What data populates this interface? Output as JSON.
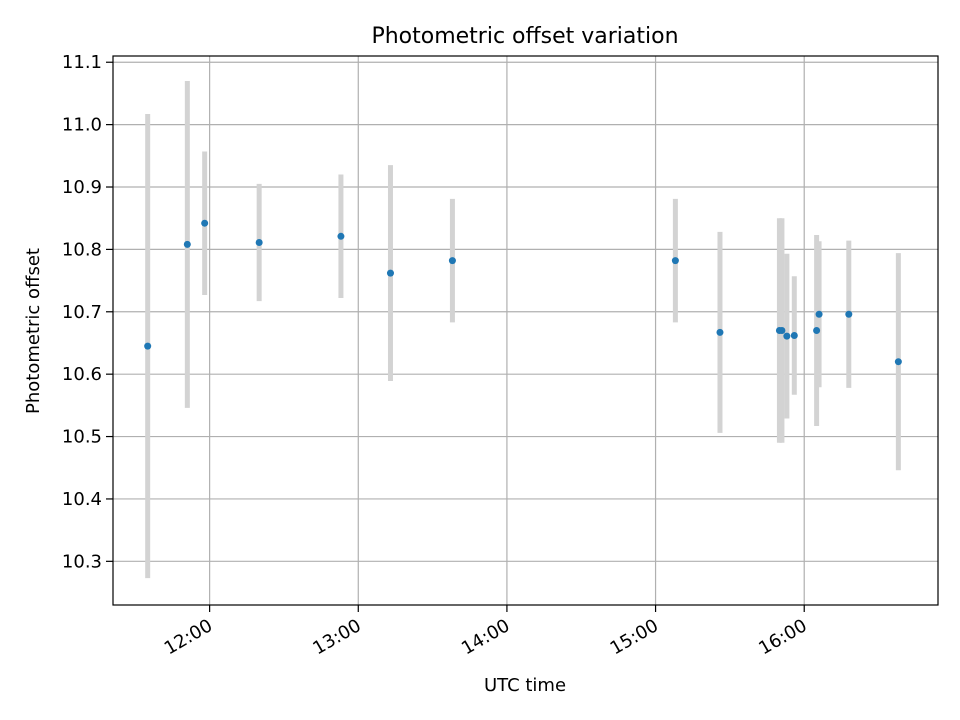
{
  "chart_data": {
    "type": "scatter",
    "title": "Photometric offset variation",
    "xlabel": "UTC time",
    "ylabel": "Photometric offset",
    "x_unit": "UTC hours",
    "xlim": [
      "11:21",
      "16:54"
    ],
    "ylim": [
      10.23,
      11.11
    ],
    "grid": true,
    "x_ticks": [
      "12:00",
      "13:00",
      "14:00",
      "15:00",
      "16:00"
    ],
    "y_ticks": [
      "10.3",
      "10.4",
      "10.5",
      "10.6",
      "10.7",
      "10.8",
      "10.9",
      "11.0",
      "11.1"
    ],
    "colors": {
      "point": "#1f77b4",
      "errorbar": "#d3d3d3",
      "grid": "#b0b0b0"
    },
    "series": [
      {
        "points": [
          {
            "x": "11:35",
            "y": 10.645,
            "err": 0.372
          },
          {
            "x": "11:51",
            "y": 10.808,
            "err": 0.262
          },
          {
            "x": "11:58",
            "y": 10.842,
            "err": 0.115
          },
          {
            "x": "12:20",
            "y": 10.811,
            "err": 0.094
          },
          {
            "x": "12:53",
            "y": 10.821,
            "err": 0.099
          },
          {
            "x": "13:13",
            "y": 10.762,
            "err": 0.173
          },
          {
            "x": "13:38",
            "y": 10.782,
            "err": 0.099
          },
          {
            "x": "15:08",
            "y": 10.782,
            "err": 0.099
          },
          {
            "x": "15:26",
            "y": 10.667,
            "err": 0.161
          },
          {
            "x": "15:50",
            "y": 10.67,
            "err": 0.18
          },
          {
            "x": "15:51",
            "y": 10.67,
            "err": 0.18
          },
          {
            "x": "15:53",
            "y": 10.661,
            "err": 0.132
          },
          {
            "x": "15:56",
            "y": 10.662,
            "err": 0.095
          },
          {
            "x": "16:05",
            "y": 10.67,
            "err": 0.153
          },
          {
            "x": "16:06",
            "y": 10.696,
            "err": 0.117
          },
          {
            "x": "16:18",
            "y": 10.696,
            "err": 0.118
          },
          {
            "x": "16:38",
            "y": 10.62,
            "err": 0.174
          }
        ]
      }
    ]
  }
}
